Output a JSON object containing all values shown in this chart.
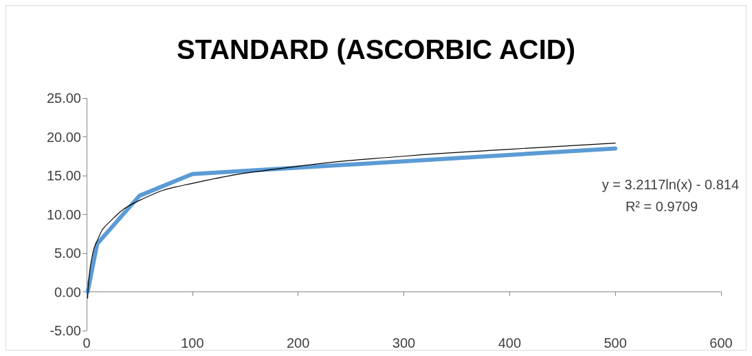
{
  "chart_data": {
    "type": "line",
    "title": "STANDARD (ASCORBIC ACID)",
    "x": [
      1,
      10,
      50,
      100,
      500
    ],
    "series": [
      {
        "color": "#5b9bd5",
        "values": [
          0,
          6.2,
          12.4,
          15.2,
          18.5
        ]
      },
      {
        "type": "line",
        "color": "#000000",
        "x": [
          1,
          2,
          5,
          10,
          20,
          50,
          100,
          200,
          300,
          400,
          500
        ],
        "values": [
          -0.8,
          1.4,
          4.4,
          6.6,
          8.8,
          11.8,
          14,
          16.2,
          17.5,
          18.4,
          19.2
        ]
      }
    ],
    "xlim": [
      0,
      600
    ],
    "xticks": [
      0,
      100,
      200,
      300,
      400,
      500,
      600
    ],
    "ylim": [
      -5,
      25
    ],
    "yticks": [
      {
        "value": -5,
        "label": "-5.00"
      },
      {
        "value": 0,
        "label": "0.00"
      },
      {
        "value": 5,
        "label": "5.00"
      },
      {
        "value": 10,
        "label": "10.00"
      },
      {
        "value": 15,
        "label": "15.00"
      },
      {
        "value": 20,
        "label": "20.00"
      },
      {
        "value": 25,
        "label": "25.00"
      }
    ],
    "annotations": [
      "y = 3.2117ln(x) - 0.814",
      "R² = 0.9709"
    ],
    "marker": "none"
  }
}
